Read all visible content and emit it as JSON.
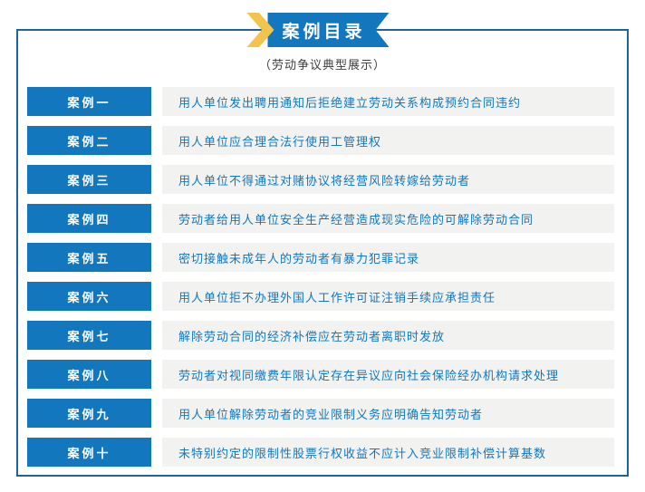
{
  "header": {
    "banner_title": "案例目录",
    "subtitle": "（劳动争议典型展示）"
  },
  "cases": [
    {
      "label": "案例一",
      "title": "用人单位发出聘用通知后拒绝建立劳动关系构成预约合同违约"
    },
    {
      "label": "案例二",
      "title": "用人单位应合理合法行使用工管理权"
    },
    {
      "label": "案例三",
      "title": "用人单位不得通过对赌协议将经营风险转嫁给劳动者"
    },
    {
      "label": "案例四",
      "title": "劳动者给用人单位安全生产经营造成现实危险的可解除劳动合同"
    },
    {
      "label": "案例五",
      "title": "密切接触未成年人的劳动者有暴力犯罪记录"
    },
    {
      "label": "案例六",
      "title": "用人单位拒不办理外国人工作许可证注销手续应承担责任"
    },
    {
      "label": "案例七",
      "title": "解除劳动合同的经济补偿应在劳动者离职时发放"
    },
    {
      "label": "案例八",
      "title": "劳动者对视同缴费年限认定存在异议应向社会保险经办机构请求处理"
    },
    {
      "label": "案例九",
      "title": "用人单位解除劳动者的竞业限制义务应明确告知劳动者"
    },
    {
      "label": "案例十",
      "title": "未特别约定的限制性股票行权收益不应计入竞业限制补偿计算基数"
    }
  ],
  "theme": {
    "primary-blue": "#1377BE",
    "border-blue": "#1E6496",
    "accent-yellow": "#F3C44B",
    "row-bg": "#F2F2F0",
    "subtitle-text": "#3D3D3D"
  }
}
